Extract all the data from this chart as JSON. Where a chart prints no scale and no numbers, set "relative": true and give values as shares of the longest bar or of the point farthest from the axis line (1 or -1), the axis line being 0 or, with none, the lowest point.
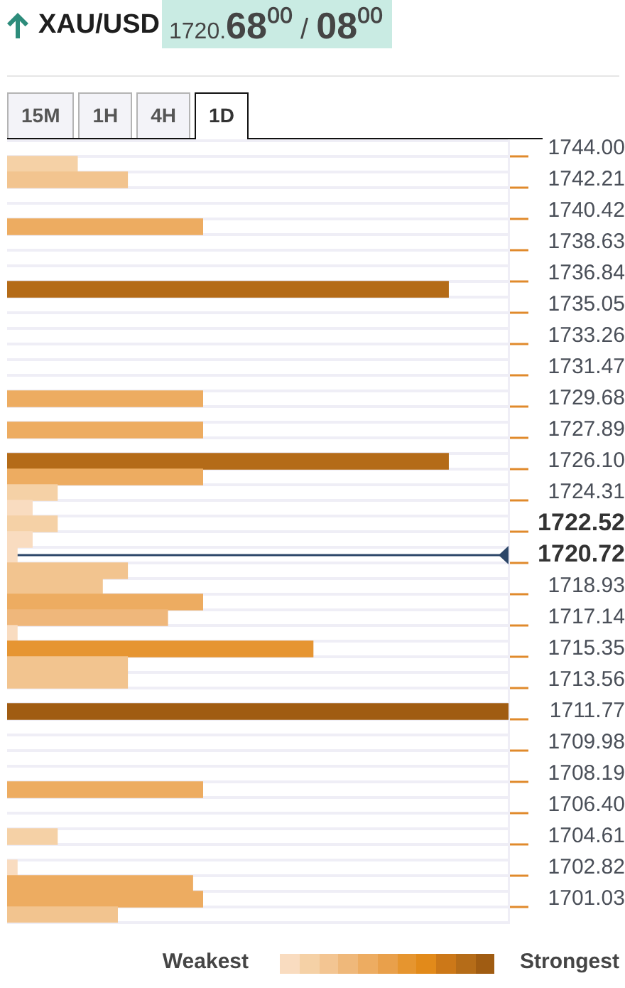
{
  "chart_data": {
    "type": "bar",
    "orientation": "horizontal",
    "relative": true,
    "title": "XAU/USD",
    "subtitle": "1720.68⁰⁰ / 08⁰⁰",
    "categories": [
      "1744.00",
      null,
      "1742.21",
      null,
      "1740.42",
      null,
      "1738.63",
      null,
      "1736.84",
      null,
      "1735.05",
      null,
      "1733.26",
      null,
      "1731.47",
      null,
      "1729.68",
      null,
      "1727.89",
      null,
      "1726.10",
      null,
      "1724.31",
      null,
      "1722.52",
      null,
      "1720.72",
      null,
      "1718.93",
      null,
      "1717.14",
      null,
      "1715.35",
      null,
      "1713.56",
      null,
      "1711.77",
      null,
      "1709.98",
      null,
      "1708.19",
      null,
      "1706.40",
      null,
      "1704.61",
      null,
      "1702.82",
      null,
      "1701.03",
      null
    ],
    "values": [
      null,
      0.14,
      0.24,
      null,
      null,
      0.39,
      null,
      null,
      null,
      0.88,
      null,
      null,
      null,
      null,
      null,
      null,
      0.39,
      null,
      0.39,
      null,
      0.88,
      0.39,
      0.1,
      0.05,
      0.1,
      0.05,
      0.02,
      0.24,
      0.19,
      0.39,
      0.32,
      0.02,
      0.61,
      0.24,
      0.24,
      null,
      1,
      null,
      null,
      null,
      null,
      0.39,
      null,
      null,
      0.1,
      null,
      0.02,
      0.37,
      0.39,
      0.22
    ],
    "colors": [
      null,
      "#f5d1a6",
      "#f2c48f",
      null,
      null,
      "#edac61",
      null,
      null,
      null,
      "#b46b18",
      null,
      null,
      null,
      null,
      null,
      null,
      "#edac61",
      null,
      "#edac61",
      null,
      "#b46b18",
      "#edac61",
      "#f5d1a6",
      "#f9dcc0",
      "#f5d1a6",
      "#f9dcc0",
      "#f9dcc0",
      "#f2c48f",
      "#f2c48f",
      "#edac61",
      "#efb77b",
      "#f9dcc0",
      "#e69532",
      "#f2c48f",
      "#f2c48f",
      null,
      "#a05c12",
      null,
      null,
      null,
      null,
      "#edac61",
      null,
      null,
      "#f5d1a6",
      null,
      "#f9dcc0",
      "#edac61",
      "#edac61",
      "#f2c48f"
    ],
    "grid": "y",
    "ref_lines": [
      {
        "axis": "y",
        "value": "1720.72",
        "color": "#2c4668"
      }
    ],
    "annotations": [
      "15M",
      "1H",
      "4H",
      "1D",
      "Weakest",
      "Strongest"
    ]
  }
}
